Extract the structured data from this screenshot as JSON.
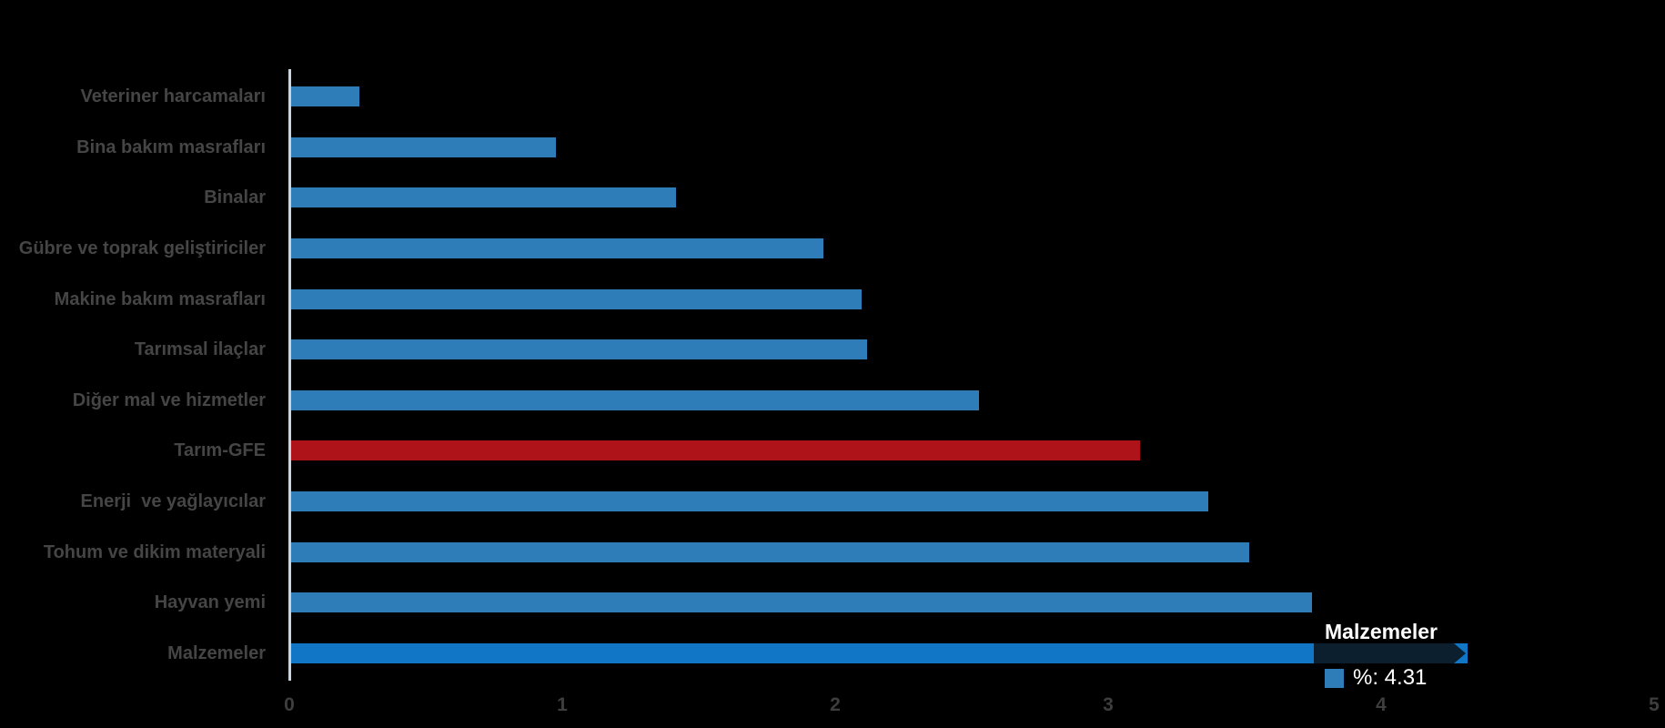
{
  "chart_data": {
    "type": "bar",
    "orientation": "horizontal",
    "title": "",
    "xlabel": "",
    "ylabel": "",
    "categories": [
      "Veteriner harcamaları",
      "Bina bakım masrafları",
      "Binalar",
      "Gübre ve toprak geliştiriciler",
      "Makine bakım masrafları",
      "Tarımsal ilaçlar",
      "Diğer mal ve hizmetler",
      "Tarım-GFE",
      "Enerji  ve yağlayıcılar",
      "Tohum ve dikim materyali",
      "Hayvan yemi",
      "Malzemeler"
    ],
    "values": [
      0.25,
      0.97,
      1.41,
      1.95,
      2.09,
      2.11,
      2.52,
      3.11,
      3.36,
      3.51,
      3.74,
      4.31
    ],
    "series_name": "%",
    "xlim": [
      0,
      5
    ],
    "x_ticks": [
      "0",
      "1",
      "2",
      "3",
      "4",
      "5"
    ],
    "grid": false,
    "legend": false,
    "highlighted_category": "Tarım-GFE",
    "hovered_category": "Malzemeler"
  },
  "tooltip": {
    "title": "Malzemeler",
    "value_label": "%: 4.31"
  },
  "colors": {
    "background": "#000000",
    "bar": "#2E7CB8",
    "bar_highlight": "#AE1319",
    "bar_hover": "#1176C6",
    "axis_line": "#C9D4E0",
    "category_label": "#454545",
    "tick_label": "#3E3E3E",
    "tooltip_bg": "#0C1F2E",
    "tooltip_text": "#FFFFFF",
    "tooltip_swatch": "#2E7CB8"
  }
}
